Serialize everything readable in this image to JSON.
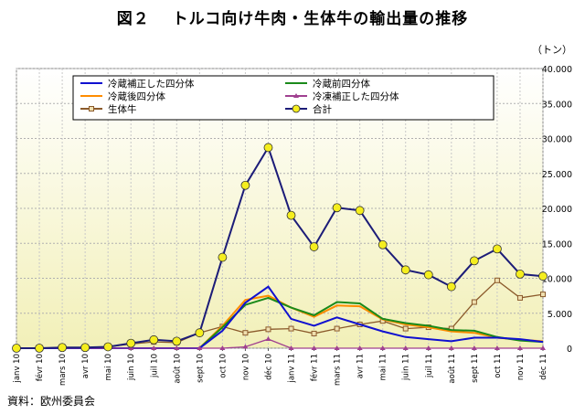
{
  "chart_title": "図２　 トルコ向け牛肉・生体牛の輸出量の推移",
  "unit_label": "（トン）",
  "source_note": "資料：欧州委員会",
  "chart_data": {
    "type": "line",
    "title": "図２　 トルコ向け牛肉・生体牛の輸出量の推移",
    "xlabel": "",
    "ylabel": "（トン）",
    "y_axis_side": "right",
    "ylim": [
      0,
      40000
    ],
    "y_ticks": [
      "0",
      "5.000",
      "10.000",
      "15.000",
      "20.000",
      "25.000",
      "30.000",
      "35.000",
      "40.000"
    ],
    "grid": true,
    "legend_position": "top-left",
    "categories": [
      "janv 10",
      "févr 10",
      "mars 10",
      "avr 10",
      "mai 10",
      "juin 10",
      "juil 10",
      "août 10",
      "sept 10",
      "oct 10",
      "nov 10",
      "déc 10",
      "janv 11",
      "févr 11",
      "mars 11",
      "avr 11",
      "mai 11",
      "juin 11",
      "juil 11",
      "août 11",
      "sept 11",
      "oct 11",
      "nov 11",
      "déc 11"
    ],
    "series": [
      {
        "name": "冷蔵補正した四分体",
        "color": "#1010d0",
        "marker": "none",
        "values": [
          0,
          0,
          0,
          0,
          0,
          0,
          0,
          0,
          0,
          2500,
          6500,
          8800,
          4200,
          3200,
          4400,
          3400,
          2400,
          1600,
          1300,
          1000,
          1500,
          1500,
          1300,
          900
        ]
      },
      {
        "name": "冷蔵前四分体",
        "color": "#1a8a1a",
        "marker": "none",
        "values": [
          0,
          0,
          0,
          0,
          0,
          0,
          0,
          0,
          0,
          3000,
          6200,
          7200,
          5800,
          4700,
          6600,
          6400,
          4200,
          3600,
          3200,
          2600,
          2500,
          1600,
          1100,
          900
        ]
      },
      {
        "name": "冷蔵後四分体",
        "color": "#ff8c00",
        "marker": "none",
        "values": [
          0,
          0,
          0,
          0,
          0,
          0,
          0,
          0,
          0,
          3200,
          6900,
          7500,
          5800,
          4500,
          6100,
          6000,
          4100,
          3400,
          3000,
          2400,
          2200,
          1500,
          1200,
          1000
        ]
      },
      {
        "name": "冷凍補正した四分体",
        "color": "#a04090",
        "marker": "triangle",
        "values": [
          0,
          0,
          0,
          0,
          0,
          0,
          0,
          0,
          0,
          0,
          200,
          1300,
          0,
          0,
          0,
          0,
          0,
          0,
          0,
          0,
          0,
          0,
          0,
          0
        ]
      },
      {
        "name": "生体牛",
        "color": "#8b5a2b",
        "marker": "square",
        "values": [
          0,
          0,
          100,
          100,
          200,
          600,
          900,
          800,
          2200,
          3100,
          2200,
          2700,
          2800,
          2100,
          2800,
          3400,
          3900,
          2800,
          3000,
          2800,
          6600,
          9700,
          7200,
          7700
        ]
      },
      {
        "name": "合計",
        "color": "#1c1c78",
        "marker": "circle",
        "values": [
          0,
          0,
          100,
          100,
          200,
          700,
          1200,
          1000,
          2200,
          13000,
          23300,
          28700,
          19000,
          14500,
          20100,
          19700,
          14800,
          11200,
          10500,
          8800,
          12500,
          14200,
          10600,
          10300
        ]
      }
    ]
  }
}
